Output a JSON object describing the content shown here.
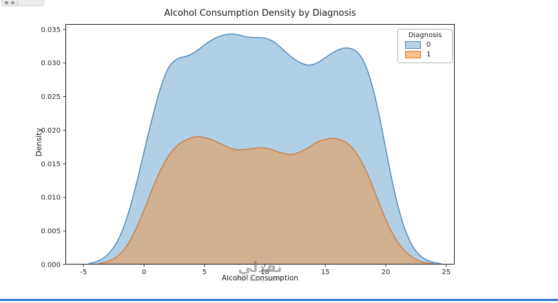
{
  "watermark": {
    "line1": "نفذلي",
    "line2": "nofazly.com"
  },
  "chart_data": {
    "type": "area",
    "title": "Alcohol Consumption Density by Diagnosis",
    "xlabel": "Alcohol Consumption",
    "ylabel": "Density",
    "xlim": [
      -6.5,
      25.7
    ],
    "ylim": [
      0,
      0.0358
    ],
    "xticks": [
      -5,
      0,
      5,
      10,
      15,
      20,
      25
    ],
    "yticks": [
      0,
      0.005,
      0.01,
      0.015,
      0.02,
      0.025,
      0.03,
      0.035
    ],
    "grid": false,
    "legend": {
      "title": "Diagnosis",
      "position": "upper right",
      "entries": [
        {
          "label": "0",
          "fill": "#b5d2e6",
          "edge": "#4a86ba"
        },
        {
          "label": "1",
          "fill": "#f5c28a",
          "edge": "#ca7b3e"
        }
      ]
    },
    "series": [
      {
        "name": "0",
        "line_color": "#4a86ba",
        "fill_color": "#1f77b4",
        "fill_opacity": 0.35,
        "points": [
          [
            -4.6,
            0.0001
          ],
          [
            -4,
            0.0004
          ],
          [
            -3.5,
            0.0008
          ],
          [
            -3,
            0.0015
          ],
          [
            -2.5,
            0.0026
          ],
          [
            -2,
            0.0042
          ],
          [
            -1.5,
            0.0065
          ],
          [
            -1,
            0.0095
          ],
          [
            -0.5,
            0.013
          ],
          [
            0,
            0.0168
          ],
          [
            0.5,
            0.0205
          ],
          [
            1,
            0.024
          ],
          [
            1.5,
            0.027
          ],
          [
            2,
            0.0292
          ],
          [
            2.5,
            0.0303
          ],
          [
            3,
            0.0308
          ],
          [
            3.5,
            0.031
          ],
          [
            4,
            0.0314
          ],
          [
            4.5,
            0.032
          ],
          [
            5,
            0.0327
          ],
          [
            5.5,
            0.0333
          ],
          [
            6,
            0.0338
          ],
          [
            6.5,
            0.0341
          ],
          [
            7,
            0.0343
          ],
          [
            7.5,
            0.0343
          ],
          [
            8,
            0.0341
          ],
          [
            8.5,
            0.0339
          ],
          [
            9,
            0.0338
          ],
          [
            9.5,
            0.0338
          ],
          [
            10,
            0.0337
          ],
          [
            10.5,
            0.0334
          ],
          [
            11,
            0.0328
          ],
          [
            11.5,
            0.032
          ],
          [
            12,
            0.0312
          ],
          [
            12.5,
            0.0305
          ],
          [
            13,
            0.03
          ],
          [
            13.5,
            0.0297
          ],
          [
            14,
            0.0298
          ],
          [
            14.5,
            0.0302
          ],
          [
            15,
            0.0308
          ],
          [
            15.5,
            0.0314
          ],
          [
            16,
            0.0319
          ],
          [
            16.5,
            0.0322
          ],
          [
            17,
            0.0322
          ],
          [
            17.5,
            0.0318
          ],
          [
            18,
            0.0308
          ],
          [
            18.5,
            0.0288
          ],
          [
            19,
            0.0258
          ],
          [
            19.5,
            0.0218
          ],
          [
            20,
            0.0172
          ],
          [
            20.5,
            0.0127
          ],
          [
            21,
            0.0088
          ],
          [
            21.5,
            0.0057
          ],
          [
            22,
            0.0035
          ],
          [
            22.5,
            0.002
          ],
          [
            23,
            0.0011
          ],
          [
            23.5,
            0.0006
          ],
          [
            24,
            0.0003
          ],
          [
            24.6,
            0.0001
          ]
        ]
      },
      {
        "name": "1",
        "line_color": "#ca7b3e",
        "fill_color": "#ff7f0e",
        "fill_opacity": 0.4,
        "points": [
          [
            -3.8,
            0.0001
          ],
          [
            -3.3,
            0.0003
          ],
          [
            -2.8,
            0.0006
          ],
          [
            -2.3,
            0.0011
          ],
          [
            -1.8,
            0.0019
          ],
          [
            -1.3,
            0.0031
          ],
          [
            -0.8,
            0.0048
          ],
          [
            -0.3,
            0.0068
          ],
          [
            0.2,
            0.009
          ],
          [
            0.7,
            0.0113
          ],
          [
            1.2,
            0.0134
          ],
          [
            1.7,
            0.0152
          ],
          [
            2.2,
            0.0166
          ],
          [
            2.7,
            0.0176
          ],
          [
            3.2,
            0.0183
          ],
          [
            3.7,
            0.0187
          ],
          [
            4.2,
            0.019
          ],
          [
            4.7,
            0.019
          ],
          [
            5.2,
            0.0188
          ],
          [
            5.7,
            0.0185
          ],
          [
            6.2,
            0.0181
          ],
          [
            6.7,
            0.0177
          ],
          [
            7.2,
            0.0173
          ],
          [
            7.7,
            0.0171
          ],
          [
            8.2,
            0.0171
          ],
          [
            8.7,
            0.0172
          ],
          [
            9.2,
            0.0173
          ],
          [
            9.7,
            0.0174
          ],
          [
            10.2,
            0.0173
          ],
          [
            10.7,
            0.017
          ],
          [
            11.2,
            0.0167
          ],
          [
            11.7,
            0.0165
          ],
          [
            12.2,
            0.0164
          ],
          [
            12.7,
            0.0166
          ],
          [
            13.2,
            0.017
          ],
          [
            13.7,
            0.0175
          ],
          [
            14.2,
            0.0181
          ],
          [
            14.7,
            0.0185
          ],
          [
            15.2,
            0.0187
          ],
          [
            15.7,
            0.0188
          ],
          [
            16.2,
            0.0186
          ],
          [
            16.7,
            0.0182
          ],
          [
            17.2,
            0.0174
          ],
          [
            17.7,
            0.0162
          ],
          [
            18.2,
            0.0146
          ],
          [
            18.7,
            0.0126
          ],
          [
            19.2,
            0.0103
          ],
          [
            19.7,
            0.008
          ],
          [
            20.2,
            0.0059
          ],
          [
            20.7,
            0.0042
          ],
          [
            21.2,
            0.0028
          ],
          [
            21.7,
            0.0018
          ],
          [
            22.2,
            0.0011
          ],
          [
            22.7,
            0.0006
          ],
          [
            23.2,
            0.0003
          ],
          [
            24,
            0.0001
          ]
        ]
      }
    ]
  }
}
